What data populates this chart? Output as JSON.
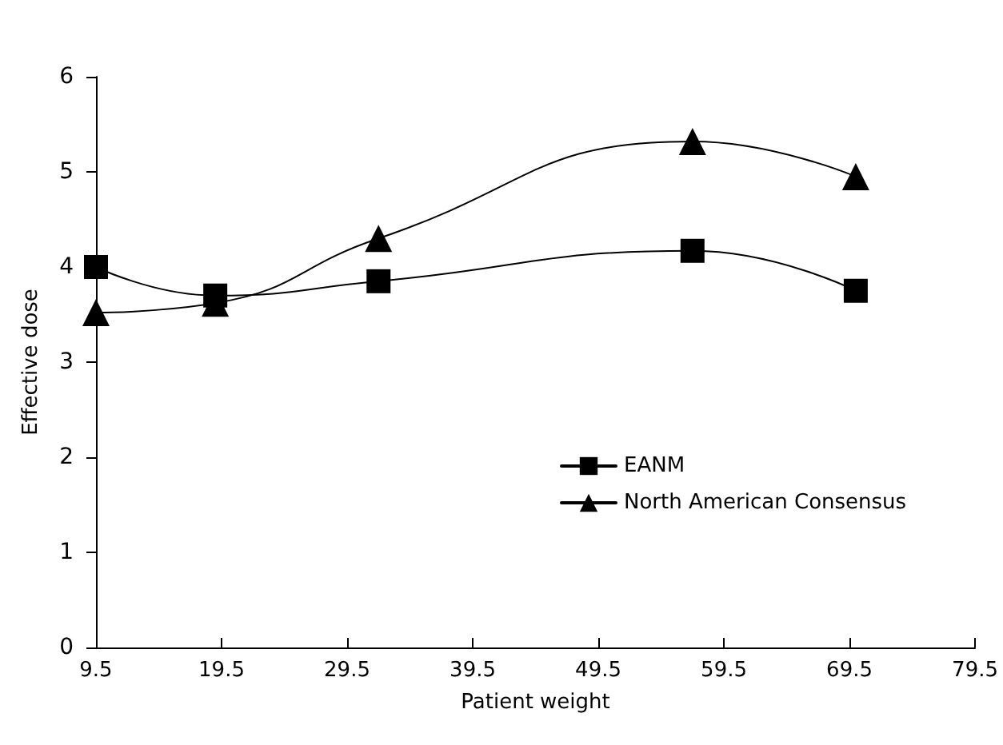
{
  "chart_data": {
    "type": "line",
    "xlabel": "Patient weight",
    "ylabel": "Effective dose",
    "x": [
      9.5,
      19,
      32,
      57,
      70
    ],
    "series": [
      {
        "name": "EANM",
        "color": "#000000",
        "marker": "square",
        "values": [
          4.0,
          3.7,
          3.85,
          4.17,
          3.75
        ]
      },
      {
        "name": "North American Consensus",
        "color": "#000000",
        "marker": "triangle",
        "values": [
          3.52,
          3.62,
          4.3,
          5.32,
          4.95
        ]
      }
    ],
    "xlim": [
      9.5,
      79.5
    ],
    "xticks": [
      9.5,
      19.5,
      29.5,
      39.5,
      49.5,
      59.5,
      69.5,
      79.5
    ],
    "ylim": [
      0,
      6
    ],
    "yticks": [
      0,
      1,
      2,
      3,
      4,
      5,
      6
    ],
    "grid": false,
    "legend": "right",
    "line_style": "solid"
  }
}
